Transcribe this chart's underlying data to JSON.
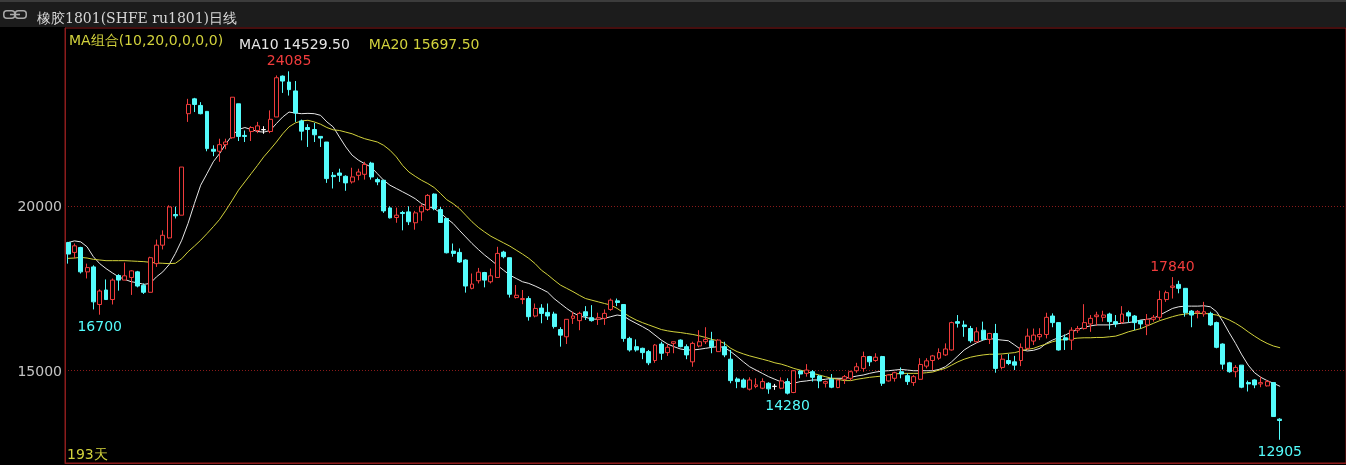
{
  "chart_data": {
    "type": "candlestick",
    "title": "橡胶1801(SHFE ru1801)日线",
    "legend_title": "MA组合(10,20,0,0,0,0)",
    "annotations": [
      {
        "text": "24085",
        "y": 24085
      },
      {
        "text": "16700",
        "y": 16700
      },
      {
        "text": "14280",
        "y": 14280
      },
      {
        "text": "17840",
        "y": 17840
      },
      {
        "text": "12905",
        "y": 12905
      },
      "193天"
    ],
    "categories": [
      null,
      null,
      null,
      null,
      null,
      null,
      null,
      null,
      null,
      null,
      null,
      null,
      null,
      null,
      null,
      null,
      null,
      null,
      null,
      null,
      null,
      null,
      null,
      null,
      null,
      null,
      null,
      null,
      null,
      null,
      null,
      null,
      null,
      null,
      null,
      null,
      null,
      null,
      null,
      null,
      null,
      null,
      null,
      null,
      null,
      null,
      null,
      null,
      null,
      null,
      null,
      null,
      null,
      null,
      null,
      null,
      null,
      null,
      null,
      null,
      null,
      null,
      null,
      null,
      null,
      null,
      null,
      null,
      null,
      null,
      null,
      null,
      null,
      null,
      null,
      null,
      null,
      null,
      null,
      null,
      null,
      null,
      null,
      null,
      null,
      null,
      null,
      null,
      null,
      null,
      null,
      null,
      null,
      null,
      null,
      null,
      null,
      null,
      null,
      null,
      null,
      null,
      null,
      null,
      null,
      null,
      null,
      null,
      null,
      null,
      null,
      null,
      null,
      null,
      null,
      null,
      null,
      null,
      null,
      null,
      null,
      null,
      null,
      null,
      null,
      null,
      null,
      null,
      null,
      null,
      null,
      null,
      null,
      null,
      null,
      null,
      null,
      null,
      null,
      null,
      null,
      null,
      null,
      null,
      null,
      null,
      null,
      null,
      null,
      null,
      null,
      null,
      null,
      null,
      null,
      null,
      null,
      null,
      null,
      null,
      null,
      null,
      null,
      null,
      null,
      null,
      null,
      null,
      null,
      null,
      null,
      null,
      null,
      null,
      null,
      null,
      null,
      null,
      null,
      null,
      null,
      null,
      null,
      null,
      null,
      null,
      null,
      null,
      null,
      null,
      null,
      null,
      null
    ],
    "series": [
      {
        "ohlc": [
          [
            18890,
            18910,
            18250,
            18540
          ],
          [
            18590,
            18860,
            18410,
            18790
          ],
          [
            18740,
            18760,
            17950,
            18000
          ],
          [
            18000,
            18250,
            17800,
            18130
          ],
          [
            18150,
            18200,
            16860,
            17090
          ],
          [
            17010,
            17470,
            16700,
            17420
          ],
          [
            17450,
            17770,
            17160,
            17160
          ],
          [
            17160,
            17800,
            17010,
            17750
          ],
          [
            17890,
            17930,
            17430,
            17750
          ],
          [
            17750,
            18280,
            17750,
            17880
          ],
          [
            17830,
            18050,
            17300,
            18030
          ],
          [
            18000,
            18030,
            17530,
            17570
          ],
          [
            17590,
            17650,
            17330,
            17380
          ],
          [
            17380,
            18460,
            17380,
            18430
          ],
          [
            18250,
            18980,
            18150,
            18810
          ],
          [
            18810,
            19260,
            18680,
            19110
          ],
          [
            19030,
            20020,
            19010,
            19970
          ],
          [
            19740,
            19980,
            19620,
            19700
          ],
          [
            19720,
            21180,
            19720,
            21180
          ],
          [
            22800,
            23250,
            22550,
            23080
          ],
          [
            23250,
            23280,
            22850,
            23080
          ],
          [
            23050,
            23150,
            22780,
            22800
          ],
          [
            22870,
            22870,
            21660,
            21740
          ],
          [
            21720,
            21840,
            21510,
            21660
          ],
          [
            21660,
            22040,
            21340,
            21860
          ],
          [
            21860,
            22040,
            21720,
            21940
          ],
          [
            22070,
            23300,
            22040,
            23300
          ],
          [
            23100,
            23100,
            21970,
            22110
          ],
          [
            22140,
            22290,
            21940,
            22110
          ],
          [
            22260,
            22420,
            21970,
            22380
          ],
          [
            22290,
            22550,
            22210,
            22430
          ],
          [
            22310,
            22420,
            22190,
            22320
          ],
          [
            22260,
            22900,
            22210,
            22630
          ],
          [
            22700,
            23960,
            22700,
            23890
          ],
          [
            23940,
            23960,
            23430,
            23790
          ],
          [
            23760,
            24085,
            23350,
            23530
          ],
          [
            23490,
            23790,
            22550,
            22820
          ],
          [
            22580,
            22620,
            21990,
            22270
          ],
          [
            22380,
            22480,
            21790,
            22320
          ],
          [
            22320,
            22520,
            21940,
            22160
          ],
          [
            22110,
            22110,
            21790,
            22060
          ],
          [
            21940,
            21940,
            20700,
            20830
          ],
          [
            20930,
            21030,
            20530,
            20890
          ],
          [
            21000,
            21130,
            20730,
            20930
          ],
          [
            20900,
            20930,
            20460,
            20700
          ],
          [
            20730,
            21160,
            20680,
            20880
          ],
          [
            20930,
            21130,
            20780,
            21030
          ],
          [
            20960,
            21340,
            20800,
            21260
          ],
          [
            21300,
            21340,
            20800,
            20880
          ],
          [
            20800,
            20860,
            20630,
            20730
          ],
          [
            20780,
            20780,
            19790,
            19850
          ],
          [
            19940,
            19990,
            19620,
            19640
          ],
          [
            19650,
            19950,
            19490,
            19720
          ],
          [
            19800,
            19850,
            19260,
            19770
          ],
          [
            19820,
            19990,
            19420,
            19520
          ],
          [
            19490,
            19850,
            19280,
            19790
          ],
          [
            19820,
            20050,
            19550,
            19990
          ],
          [
            19890,
            20360,
            19850,
            20320
          ],
          [
            20360,
            20380,
            19870,
            19920
          ],
          [
            19890,
            19970,
            19490,
            19500
          ],
          [
            19620,
            19620,
            18560,
            18580
          ],
          [
            18630,
            18860,
            18460,
            18560
          ],
          [
            18590,
            18710,
            18270,
            18300
          ],
          [
            18360,
            18380,
            17370,
            17570
          ],
          [
            17500,
            17950,
            17470,
            17630
          ],
          [
            17730,
            18120,
            17650,
            17990
          ],
          [
            17980,
            18000,
            17530,
            17750
          ],
          [
            17700,
            18100,
            17650,
            17880
          ],
          [
            17830,
            18760,
            17830,
            18560
          ],
          [
            18600,
            18640,
            18410,
            18460
          ],
          [
            18430,
            18430,
            17220,
            17320
          ],
          [
            17220,
            17600,
            17190,
            17290
          ],
          [
            17160,
            17450,
            17020,
            17190
          ],
          [
            17190,
            17260,
            16520,
            16640
          ],
          [
            16660,
            17040,
            16620,
            16890
          ],
          [
            16900,
            17020,
            16440,
            16740
          ],
          [
            16770,
            17040,
            16540,
            16660
          ],
          [
            16720,
            16790,
            16280,
            16340
          ],
          [
            16250,
            16320,
            15730,
            16080
          ],
          [
            16030,
            16560,
            15810,
            16560
          ],
          [
            16590,
            16790,
            16420,
            16660
          ],
          [
            16520,
            16790,
            16230,
            16740
          ],
          [
            16790,
            16960,
            16540,
            16660
          ],
          [
            16610,
            16990,
            16490,
            16520
          ],
          [
            16560,
            16760,
            16390,
            16610
          ],
          [
            16590,
            16860,
            16390,
            16740
          ],
          [
            16860,
            17190,
            16820,
            17140
          ],
          [
            17120,
            17190,
            16960,
            17070
          ],
          [
            17010,
            17010,
            15880,
            15980
          ],
          [
            15980,
            16030,
            15580,
            15630
          ],
          [
            15730,
            15950,
            15580,
            15630
          ],
          [
            15680,
            15700,
            15350,
            15550
          ],
          [
            15580,
            15630,
            15170,
            15240
          ],
          [
            15310,
            15810,
            15240,
            15780
          ],
          [
            15810,
            15880,
            15330,
            15530
          ],
          [
            15550,
            15810,
            15450,
            15710
          ],
          [
            15830,
            15880,
            15530,
            15880
          ],
          [
            15930,
            15950,
            15710,
            15730
          ],
          [
            15730,
            15800,
            15350,
            15480
          ],
          [
            15270,
            15880,
            15120,
            15830
          ],
          [
            15750,
            16230,
            15710,
            15880
          ],
          [
            15880,
            16320,
            15810,
            15950
          ],
          [
            15910,
            16180,
            15530,
            15730
          ],
          [
            15580,
            15960,
            15580,
            15930
          ],
          [
            15730,
            15880,
            15410,
            15480
          ],
          [
            15350,
            15630,
            14620,
            14700
          ],
          [
            14750,
            14800,
            14470,
            14670
          ],
          [
            14720,
            14770,
            14470,
            14500
          ],
          [
            14440,
            14800,
            14400,
            14720
          ],
          [
            14520,
            14770,
            14470,
            14570
          ],
          [
            14470,
            14770,
            14440,
            14670
          ],
          [
            14620,
            14650,
            14300,
            14450
          ],
          [
            14520,
            14600,
            14420,
            14530
          ],
          [
            14470,
            14800,
            14440,
            14690
          ],
          [
            14670,
            14770,
            14280,
            14320
          ],
          [
            14340,
            15020,
            14320,
            15000
          ],
          [
            14990,
            15020,
            14770,
            14900
          ],
          [
            14920,
            15200,
            14820,
            15020
          ],
          [
            14970,
            15020,
            14670,
            14800
          ],
          [
            14840,
            14870,
            14470,
            14690
          ],
          [
            14620,
            14700,
            14490,
            14670
          ],
          [
            14740,
            14900,
            14470,
            14500
          ],
          [
            14490,
            14740,
            14470,
            14720
          ],
          [
            14740,
            14870,
            14600,
            14820
          ],
          [
            14770,
            15000,
            14700,
            14970
          ],
          [
            15000,
            15240,
            14940,
            15120
          ],
          [
            15070,
            15580,
            14970,
            15430
          ],
          [
            15430,
            15450,
            15140,
            15270
          ],
          [
            15310,
            15530,
            15270,
            15410
          ],
          [
            15430,
            15450,
            14540,
            14620
          ],
          [
            14690,
            14900,
            14670,
            14870
          ],
          [
            14770,
            14970,
            14670,
            14940
          ],
          [
            14970,
            15100,
            14770,
            14900
          ],
          [
            14850,
            14920,
            14570,
            14670
          ],
          [
            14640,
            14870,
            14540,
            14820
          ],
          [
            14740,
            15380,
            14720,
            15190
          ],
          [
            15140,
            15380,
            15070,
            15300
          ],
          [
            15310,
            15480,
            15020,
            15450
          ],
          [
            15380,
            15680,
            15330,
            15550
          ],
          [
            15480,
            15830,
            15450,
            15660
          ],
          [
            15630,
            16490,
            15610,
            16460
          ],
          [
            16490,
            16690,
            16310,
            16440
          ],
          [
            16390,
            16520,
            16030,
            16340
          ],
          [
            16280,
            16360,
            15850,
            15910
          ],
          [
            15880,
            16320,
            15850,
            16180
          ],
          [
            16230,
            16490,
            15910,
            15950
          ],
          [
            15950,
            16150,
            15810,
            16130
          ],
          [
            16130,
            16420,
            14940,
            15070
          ],
          [
            15100,
            15480,
            15040,
            15350
          ],
          [
            15310,
            15510,
            15170,
            15220
          ],
          [
            15270,
            15450,
            15020,
            15170
          ],
          [
            15310,
            15830,
            15140,
            15710
          ],
          [
            15680,
            16280,
            15630,
            16050
          ],
          [
            15900,
            16280,
            15780,
            16080
          ],
          [
            16030,
            16290,
            15930,
            16100
          ],
          [
            16100,
            16760,
            15980,
            16620
          ],
          [
            16660,
            16740,
            16320,
            16460
          ],
          [
            16460,
            16460,
            15610,
            15630
          ],
          [
            16000,
            16100,
            15630,
            15930
          ],
          [
            15930,
            16320,
            15630,
            16230
          ],
          [
            16230,
            16360,
            16150,
            16280
          ],
          [
            16280,
            17020,
            16250,
            16460
          ],
          [
            16420,
            16690,
            16180,
            16590
          ],
          [
            16640,
            16790,
            16360,
            16690
          ],
          [
            16620,
            16820,
            16490,
            16690
          ],
          [
            16720,
            16760,
            16250,
            16490
          ],
          [
            16490,
            16690,
            16320,
            16420
          ],
          [
            16460,
            16960,
            16420,
            16720
          ],
          [
            16760,
            16820,
            16460,
            16660
          ],
          [
            16660,
            16690,
            16230,
            16460
          ],
          [
            16520,
            16540,
            16280,
            16420
          ],
          [
            16390,
            16720,
            16080,
            16560
          ],
          [
            16560,
            16690,
            16490,
            16620
          ],
          [
            16620,
            17430,
            16540,
            17160
          ],
          [
            17160,
            17430,
            17090,
            17370
          ],
          [
            17530,
            17840,
            17190,
            17570
          ],
          [
            17620,
            17730,
            17350,
            17500
          ],
          [
            17500,
            17500,
            16640,
            16760
          ],
          [
            16810,
            16840,
            16320,
            16690
          ],
          [
            16760,
            16840,
            16590,
            16800
          ],
          [
            16720,
            17090,
            16640,
            16790
          ],
          [
            16740,
            16790,
            16360,
            16390
          ],
          [
            16460,
            16490,
            15680,
            15710
          ],
          [
            15810,
            15830,
            15040,
            15200
          ],
          [
            15240,
            15270,
            14940,
            14970
          ],
          [
            14970,
            15170,
            14800,
            15100
          ],
          [
            15170,
            15170,
            14470,
            14500
          ],
          [
            14640,
            14700,
            14370,
            14600
          ],
          [
            14720,
            14740,
            14470,
            14570
          ],
          [
            14600,
            14820,
            14500,
            14640
          ],
          [
            14540,
            14720,
            14520,
            14670
          ],
          [
            14640,
            14640,
            13610,
            13610
          ],
          [
            13530,
            13560,
            12905,
            13490
          ]
        ],
        "colors": [
          "#54fcfc",
          "#f03c3c",
          "#54fcfc",
          "#f03c3c",
          "#54fcfc",
          "#f03c3c",
          "#54fcfc",
          "#f03c3c",
          "#54fcfc",
          "#f03c3c",
          "#f03c3c",
          "#54fcfc",
          "#54fcfc",
          "#f03c3c",
          "#f03c3c",
          "#f03c3c",
          "#f03c3c",
          "#54fcfc",
          "#f03c3c",
          "#f03c3c",
          "#54fcfc",
          "#54fcfc",
          "#54fcfc",
          "#54fcfc",
          "#f03c3c",
          "#f03c3c",
          "#f03c3c",
          "#54fcfc",
          "#54fcfc",
          "#f03c3c",
          "#f03c3c",
          "#ffffff",
          "#f03c3c",
          "#f03c3c",
          "#54fcfc",
          "#54fcfc",
          "#54fcfc",
          "#54fcfc",
          "#54fcfc",
          "#54fcfc",
          "#54fcfc",
          "#54fcfc",
          "#54fcfc",
          "#54fcfc",
          "#54fcfc",
          "#f03c3c",
          "#f03c3c",
          "#f03c3c",
          "#54fcfc",
          "#54fcfc",
          "#54fcfc",
          "#54fcfc",
          "#f03c3c",
          "#54fcfc",
          "#54fcfc",
          "#f03c3c",
          "#f03c3c",
          "#f03c3c",
          "#54fcfc",
          "#54fcfc",
          "#54fcfc",
          "#54fcfc",
          "#54fcfc",
          "#54fcfc",
          "#f03c3c",
          "#f03c3c",
          "#54fcfc",
          "#f03c3c",
          "#f03c3c",
          "#54fcfc",
          "#54fcfc",
          "#f03c3c",
          "#f03c3c",
          "#54fcfc",
          "#f03c3c",
          "#54fcfc",
          "#54fcfc",
          "#54fcfc",
          "#54fcfc",
          "#f03c3c",
          "#f03c3c",
          "#f03c3c",
          "#54fcfc",
          "#54fcfc",
          "#f03c3c",
          "#f03c3c",
          "#f03c3c",
          "#54fcfc",
          "#54fcfc",
          "#54fcfc",
          "#54fcfc",
          "#54fcfc",
          "#54fcfc",
          "#f03c3c",
          "#54fcfc",
          "#f03c3c",
          "#f03c3c",
          "#54fcfc",
          "#54fcfc",
          "#f03c3c",
          "#f03c3c",
          "#f03c3c",
          "#54fcfc",
          "#f03c3c",
          "#54fcfc",
          "#54fcfc",
          "#54fcfc",
          "#54fcfc",
          "#f03c3c",
          "#f03c3c",
          "#f03c3c",
          "#54fcfc",
          "#ffffff",
          "#f03c3c",
          "#54fcfc",
          "#f03c3c",
          "#54fcfc",
          "#f03c3c",
          "#54fcfc",
          "#54fcfc",
          "#f03c3c",
          "#54fcfc",
          "#f03c3c",
          "#f03c3c",
          "#f03c3c",
          "#f03c3c",
          "#f03c3c",
          "#54fcfc",
          "#f03c3c",
          "#54fcfc",
          "#f03c3c",
          "#f03c3c",
          "#54fcfc",
          "#54fcfc",
          "#f03c3c",
          "#f03c3c",
          "#f03c3c",
          "#f03c3c",
          "#f03c3c",
          "#f03c3c",
          "#f03c3c",
          "#54fcfc",
          "#54fcfc",
          "#54fcfc",
          "#f03c3c",
          "#54fcfc",
          "#f03c3c",
          "#54fcfc",
          "#f03c3c",
          "#54fcfc",
          "#54fcfc",
          "#f03c3c",
          "#f03c3c",
          "#f03c3c",
          "#f03c3c",
          "#f03c3c",
          "#54fcfc",
          "#54fcfc",
          "#54fcfc",
          "#f03c3c",
          "#f03c3c",
          "#f03c3c",
          "#f03c3c",
          "#f03c3c",
          "#f03c3c",
          "#54fcfc",
          "#54fcfc",
          "#f03c3c",
          "#54fcfc",
          "#54fcfc",
          "#54fcfc",
          "#f03c3c",
          "#f03c3c",
          "#f03c3c",
          "#f03c3c",
          "#f03c3c",
          "#54fcfc",
          "#54fcfc",
          "#54fcfc",
          "#f03c3c",
          "#f03c3c",
          "#54fcfc",
          "#54fcfc",
          "#54fcfc",
          "#54fcfc",
          "#f03c3c",
          "#54fcfc",
          "#54fcfc",
          "#54fcfc",
          "#f03c3c",
          "#f03c3c",
          "#54fcfc",
          "#54fcfc"
        ]
      },
      {
        "type": "line",
        "name": "MA10 14529.50",
        "color": "#e6e6e6",
        "values": [
          18890,
          18940,
          18910,
          18760,
          18460,
          18250,
          18100,
          17970,
          17850,
          17770,
          17700,
          17670,
          17620,
          17650,
          17850,
          18000,
          18220,
          18560,
          18960,
          19470,
          20070,
          20630,
          20980,
          21340,
          21590,
          21890,
          22140,
          22320,
          22380,
          22320,
          22260,
          22240,
          22290,
          22500,
          22700,
          22850,
          22820,
          22800,
          22810,
          22800,
          22750,
          22550,
          22400,
          22090,
          21790,
          21540,
          21390,
          21280,
          21180,
          20980,
          20780,
          20630,
          20530,
          20430,
          20330,
          20220,
          20070,
          19990,
          19920,
          19790,
          19620,
          19470,
          19260,
          19060,
          18860,
          18680,
          18510,
          18360,
          18200,
          18050,
          17900,
          17800,
          17700,
          17650,
          17570,
          17480,
          17380,
          17190,
          17040,
          16890,
          16760,
          16660,
          16620,
          16570,
          16560,
          16590,
          16640,
          16690,
          16660,
          16540,
          16440,
          16340,
          16230,
          16080,
          15930,
          15810,
          15730,
          15660,
          15630,
          15630,
          15650,
          15680,
          15710,
          15730,
          15710,
          15580,
          15430,
          15270,
          15120,
          15020,
          14920,
          14820,
          14740,
          14660,
          14610,
          14620,
          14670,
          14690,
          14720,
          14720,
          14740,
          14770,
          14770,
          14770,
          14800,
          14840,
          14870,
          14920,
          14960,
          14990,
          15000,
          15020,
          15040,
          15020,
          15000,
          15000,
          15000,
          15000,
          15040,
          15120,
          15270,
          15450,
          15630,
          15750,
          15850,
          15930,
          15980,
          15950,
          15930,
          15910,
          15780,
          15640,
          15600,
          15620,
          15680,
          15830,
          15930,
          16010,
          16080,
          16180,
          16250,
          16320,
          16360,
          16390,
          16390,
          16390,
          16420,
          16440,
          16460,
          16490,
          16540,
          16560,
          16590,
          16690,
          16790,
          16890,
          16940,
          16960,
          16960,
          16960,
          16970,
          16940,
          16790,
          16490,
          16150,
          15830,
          15480,
          15170,
          14940,
          14800,
          14700,
          14620,
          14530
        ]
      },
      {
        "type": "line",
        "name": "MA20 15697.50",
        "color": "#d2d23c",
        "values": [
          18410,
          18420,
          18440,
          18420,
          18380,
          18360,
          18340,
          18340,
          18340,
          18340,
          18330,
          18320,
          18310,
          18290,
          18270,
          18260,
          18250,
          18260,
          18400,
          18610,
          18780,
          18960,
          19160,
          19370,
          19590,
          19870,
          20170,
          20480,
          20730,
          20980,
          21230,
          21490,
          21710,
          21940,
          22190,
          22400,
          22520,
          22580,
          22600,
          22550,
          22480,
          22380,
          22310,
          22290,
          22240,
          22190,
          22110,
          22040,
          21990,
          21940,
          21840,
          21690,
          21490,
          21230,
          21030,
          20900,
          20780,
          20680,
          20560,
          20380,
          20190,
          20070,
          19920,
          19720,
          19520,
          19350,
          19210,
          19080,
          18980,
          18880,
          18780,
          18660,
          18540,
          18410,
          18250,
          18050,
          17910,
          17750,
          17600,
          17500,
          17400,
          17290,
          17190,
          17140,
          17090,
          17040,
          16990,
          16890,
          16760,
          16640,
          16540,
          16460,
          16390,
          16320,
          16250,
          16210,
          16180,
          16160,
          16130,
          16100,
          16060,
          16010,
          15950,
          15910,
          15830,
          15680,
          15580,
          15510,
          15450,
          15400,
          15350,
          15300,
          15240,
          15200,
          15140,
          15070,
          15020,
          14970,
          14920,
          14870,
          14820,
          14770,
          14740,
          14700,
          14700,
          14740,
          14770,
          14800,
          14820,
          14840,
          14870,
          14900,
          14920,
          14920,
          14920,
          14920,
          14940,
          14960,
          15020,
          15070,
          15170,
          15270,
          15350,
          15410,
          15450,
          15480,
          15500,
          15500,
          15510,
          15530,
          15550,
          15600,
          15650,
          15680,
          15750,
          15810,
          15880,
          15930,
          15950,
          15970,
          15990,
          16000,
          16000,
          16010,
          16010,
          16030,
          16050,
          16110,
          16180,
          16230,
          16280,
          16360,
          16440,
          16520,
          16580,
          16640,
          16690,
          16720,
          16740,
          16740,
          16740,
          16720,
          16690,
          16620,
          16540,
          16440,
          16320,
          16180,
          16050,
          15930,
          15830,
          15750,
          15700
        ]
      }
    ],
    "ylim": [
      12200,
      25400
    ],
    "yticks": [
      15000,
      20000
    ],
    "grid": "y",
    "legend": "top left",
    "tick_labels": "y",
    "marker": "none"
  }
}
